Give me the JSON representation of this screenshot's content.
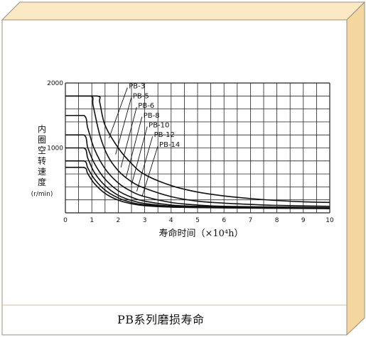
{
  "caption": "PB系列磨损寿命",
  "colors": {
    "frame_fill": "#fdf1d2",
    "frame_border": "#9a9080",
    "shadow": "#f5dfae",
    "grid": "#222222",
    "curve": "#111111"
  },
  "chart_data": {
    "type": "line",
    "xlabel": "寿命时间（×10⁴h）",
    "ylabel_lines": [
      "内",
      "圈",
      "空",
      "转",
      "速",
      "度",
      "(r/min)"
    ],
    "xlim": [
      0,
      10
    ],
    "ylim": [
      0,
      2000
    ],
    "x_ticks": [
      "0",
      "1",
      "2",
      "3",
      "4",
      "5",
      "6",
      "7",
      "8",
      "9",
      "10"
    ],
    "y_ticks": [
      {
        "value": 1000,
        "label": "1000"
      },
      {
        "value": 2000,
        "label": "2000"
      }
    ],
    "grid": true,
    "series": [
      {
        "name": "PB-3",
        "plateau": 1800,
        "knee": 1.2,
        "points": [
          [
            0,
            1800
          ],
          [
            1.2,
            1800
          ],
          [
            1.3,
            1700
          ],
          [
            1.5,
            1350
          ],
          [
            2,
            1000
          ],
          [
            2.5,
            760
          ],
          [
            3,
            590
          ],
          [
            4,
            420
          ],
          [
            5,
            320
          ],
          [
            6,
            260
          ],
          [
            7,
            220
          ],
          [
            8,
            190
          ],
          [
            9,
            170
          ],
          [
            10,
            160
          ]
        ]
      },
      {
        "name": "PB-5",
        "plateau": 1800,
        "knee": 0.95,
        "points": [
          [
            0,
            1800
          ],
          [
            0.95,
            1800
          ],
          [
            1.05,
            1650
          ],
          [
            1.3,
            1200
          ],
          [
            1.6,
            880
          ],
          [
            2,
            650
          ],
          [
            2.5,
            480
          ],
          [
            3,
            380
          ],
          [
            4,
            250
          ],
          [
            5,
            180
          ],
          [
            6,
            150
          ],
          [
            7,
            130
          ],
          [
            8,
            115
          ],
          [
            10,
            100
          ]
        ]
      },
      {
        "name": "PB-6",
        "plateau": 1500,
        "knee": 0.7,
        "points": [
          [
            0,
            1500
          ],
          [
            0.7,
            1500
          ],
          [
            0.85,
            1300
          ],
          [
            1.1,
            980
          ],
          [
            1.5,
            680
          ],
          [
            2,
            460
          ],
          [
            2.5,
            330
          ],
          [
            3,
            250
          ],
          [
            4,
            160
          ],
          [
            5,
            120
          ],
          [
            6,
            100
          ],
          [
            8,
            90
          ],
          [
            10,
            80
          ]
        ]
      },
      {
        "name": "PB-8",
        "plateau": 1200,
        "knee": 0.7,
        "points": [
          [
            0,
            1200
          ],
          [
            0.7,
            1200
          ],
          [
            0.85,
            1000
          ],
          [
            1.1,
            760
          ],
          [
            1.5,
            520
          ],
          [
            2,
            340
          ],
          [
            2.5,
            240
          ],
          [
            3,
            180
          ],
          [
            4,
            120
          ],
          [
            5,
            100
          ],
          [
            7,
            85
          ],
          [
            10,
            75
          ]
        ]
      },
      {
        "name": "PB-10",
        "plateau": 1000,
        "knee": 0.7,
        "points": [
          [
            0,
            1000
          ],
          [
            0.7,
            1000
          ],
          [
            0.85,
            840
          ],
          [
            1.1,
            620
          ],
          [
            1.5,
            420
          ],
          [
            2,
            270
          ],
          [
            2.5,
            190
          ],
          [
            3,
            145
          ],
          [
            4,
            105
          ],
          [
            6,
            85
          ],
          [
            10,
            70
          ]
        ]
      },
      {
        "name": "PB-12",
        "plateau": 800,
        "knee": 0.7,
        "points": [
          [
            0,
            800
          ],
          [
            0.7,
            800
          ],
          [
            0.85,
            690
          ],
          [
            1.1,
            520
          ],
          [
            1.5,
            350
          ],
          [
            2,
            230
          ],
          [
            2.5,
            160
          ],
          [
            3,
            125
          ],
          [
            4,
            95
          ],
          [
            6,
            80
          ],
          [
            10,
            68
          ]
        ]
      },
      {
        "name": "PB-14",
        "plateau": 700,
        "knee": 0.7,
        "points": [
          [
            0,
            700
          ],
          [
            0.7,
            700
          ],
          [
            0.85,
            600
          ],
          [
            1.1,
            450
          ],
          [
            1.5,
            300
          ],
          [
            2,
            195
          ],
          [
            2.5,
            140
          ],
          [
            3,
            110
          ],
          [
            4,
            88
          ],
          [
            6,
            76
          ],
          [
            10,
            65
          ]
        ]
      }
    ],
    "label_positions": [
      {
        "name": "PB-3",
        "label_x": 2.4,
        "label_y": 1950,
        "leader_to": [
          1.65,
          1150
        ]
      },
      {
        "name": "PB-5",
        "label_x": 2.55,
        "label_y": 1800,
        "leader_to": [
          1.9,
          900
        ]
      },
      {
        "name": "PB-6",
        "label_x": 2.75,
        "label_y": 1650,
        "leader_to": [
          2.1,
          700
        ]
      },
      {
        "name": "PB-8",
        "label_x": 2.95,
        "label_y": 1500,
        "leader_to": [
          2.3,
          550
        ]
      },
      {
        "name": "PB-10",
        "label_x": 3.15,
        "label_y": 1350,
        "leader_to": [
          2.5,
          430
        ]
      },
      {
        "name": "PB-12",
        "label_x": 3.35,
        "label_y": 1200,
        "leader_to": [
          2.7,
          330
        ]
      },
      {
        "name": "PB-14",
        "label_x": 3.55,
        "label_y": 1050,
        "leader_to": [
          2.9,
          250
        ]
      }
    ]
  }
}
